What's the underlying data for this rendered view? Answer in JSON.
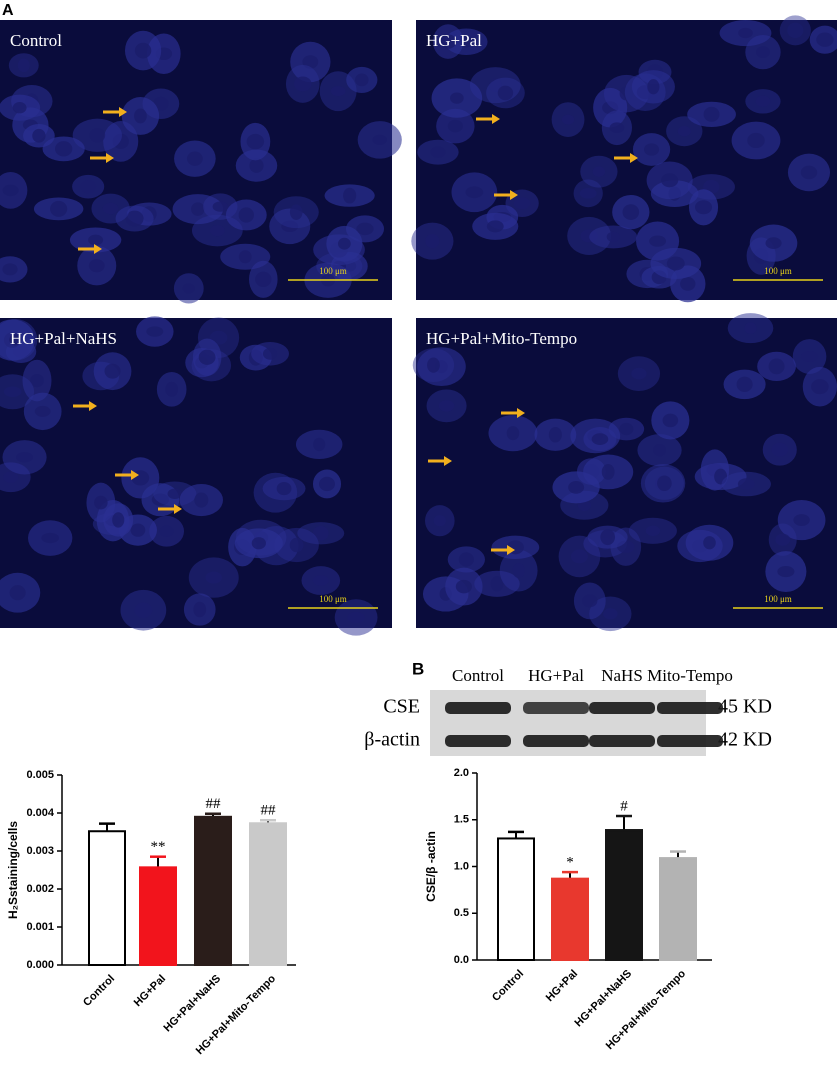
{
  "panel_a": {
    "label": "A",
    "images": [
      {
        "label": "Control",
        "scale": "100 μm"
      },
      {
        "label": "HG+Pal",
        "scale": "100 μm"
      },
      {
        "label": "HG+Pal+NaHS",
        "scale": "100 μm"
      },
      {
        "label": "HG+Pal+Mito-Tempo",
        "scale": "100 μm"
      }
    ]
  },
  "panel_b": {
    "label": "B",
    "blot_columns": [
      "Control",
      "HG+Pal",
      "NaHS",
      "Mito-Tempo"
    ],
    "blot_rows": [
      {
        "name": "CSE",
        "size": "45 KD"
      },
      {
        "name": "β-actin",
        "size": "42 KD"
      }
    ]
  },
  "chart_data": [
    {
      "type": "bar",
      "y_label": "H₂Sstaining/cells",
      "categories": [
        "Control",
        "HG+Pal",
        "HG+Pal+NaHS",
        "HG+Pal+Mito-Tempo"
      ],
      "values": [
        0.00352,
        0.00257,
        0.0039,
        0.00373
      ],
      "errors": [
        0.0002,
        0.00028,
        8e-05,
        8e-05
      ],
      "colors": [
        "#ffffff",
        "#f2141c",
        "#2a1d1a",
        "#c9c9c9"
      ],
      "annotations": [
        null,
        "**",
        "##",
        "##"
      ],
      "ylim": [
        0,
        0.005
      ],
      "yticks": [
        {
          "value": 0,
          "label": "0.000"
        },
        0.001,
        0.002,
        0.003,
        0.004,
        0.005
      ]
    },
    {
      "type": "bar",
      "y_label": "CSE/β -actin",
      "categories": [
        "Control",
        "HG+Pal",
        "HG+Pal+NaHS",
        "HG+Pal+Mito-Tempo"
      ],
      "values": [
        1.3,
        0.87,
        1.39,
        1.09
      ],
      "errors": [
        0.07,
        0.07,
        0.15,
        0.07
      ],
      "colors": [
        "#ffffff",
        "#e8382e",
        "#151515",
        "#b3b3b3"
      ],
      "annotations": [
        null,
        "*",
        "#",
        null
      ],
      "ylim": [
        0,
        2
      ],
      "yticks": [
        {
          "value": 0,
          "label": "0.0"
        },
        0.5,
        {
          "value": 1,
          "label": "1.0"
        },
        1.5,
        {
          "value": 2,
          "label": "2.0"
        }
      ]
    }
  ]
}
